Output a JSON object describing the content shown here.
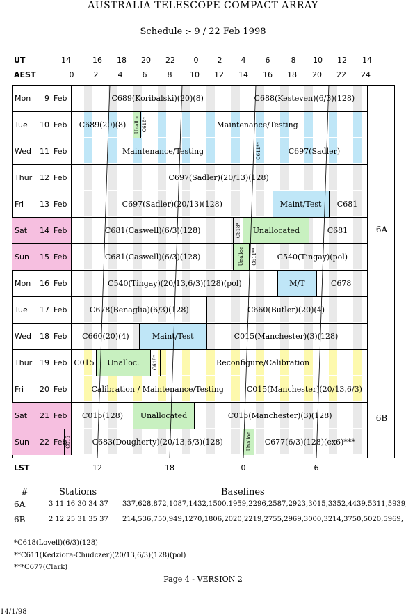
{
  "title": "AUSTRALIA TELESCOPE COMPACT ARRAY",
  "subtitle": "Schedule :- 9 / 22 Feb 1998",
  "axes": {
    "ut_label": "UT",
    "aest_label": "AEST",
    "lst_label": "LST",
    "ut_ticks": [
      "14",
      "16",
      "18",
      "20",
      "22",
      "0",
      "2",
      "4",
      "6",
      "8",
      "10",
      "12",
      "14"
    ],
    "aest_ticks": [
      "0",
      "2",
      "4",
      "6",
      "8",
      "10",
      "12",
      "14",
      "16",
      "18",
      "20",
      "22",
      "24"
    ],
    "lst_ticks": [
      "12",
      "18",
      "0",
      "6"
    ]
  },
  "configs": [
    "6A",
    "6B"
  ],
  "rows": [
    {
      "day": "Mon",
      "date": "9",
      "month": "Feb",
      "weekend": false,
      "blocks": [
        "C689(Koribalski)(20)(8)",
        "C688(Kesteven)(6/3)(128)"
      ]
    },
    {
      "day": "Tue",
      "date": "10",
      "month": "Feb",
      "weekend": false,
      "blocks": [
        "C689(20)(8)",
        "Unalloc",
        "C618*",
        "Maintenance/Testing"
      ]
    },
    {
      "day": "Wed",
      "date": "11",
      "month": "Feb",
      "weekend": false,
      "blocks": [
        "Maintenance/Testing",
        "C611**",
        "C697(Sadler)"
      ]
    },
    {
      "day": "Thur",
      "date": "12",
      "month": "Feb",
      "weekend": false,
      "blocks": [
        "C697(Sadler)(20/13)(128)"
      ]
    },
    {
      "day": "Fri",
      "date": "13",
      "month": "Feb",
      "weekend": false,
      "blocks": [
        "C697(Sadler)(20/13)(128)",
        "Maint/Test",
        "C681"
      ]
    },
    {
      "day": "Sat",
      "date": "14",
      "month": "Feb",
      "weekend": true,
      "blocks": [
        "C681(Caswell)(6/3)(128)",
        "C618*",
        "Unallocated",
        "C681"
      ]
    },
    {
      "day": "Sun",
      "date": "15",
      "month": "Feb",
      "weekend": true,
      "blocks": [
        "C681(Caswell)(6/3)(128)",
        "Unalloc",
        "C611**",
        "C540(Tingay)(pol)"
      ]
    },
    {
      "day": "Mon",
      "date": "16",
      "month": "Feb",
      "weekend": false,
      "blocks": [
        "C540(Tingay)(20/13,6/3)(128)(pol)",
        "M/T",
        "C678"
      ]
    },
    {
      "day": "Tue",
      "date": "17",
      "month": "Feb",
      "weekend": false,
      "blocks": [
        "C678(Benaglia)(6/3)(128)",
        "C660(Butler)(20)(4)"
      ]
    },
    {
      "day": "Wed",
      "date": "18",
      "month": "Feb",
      "weekend": false,
      "blocks": [
        "C660(20)(4)",
        "Maint/Test",
        "C015(Manchester)(3)(128)"
      ]
    },
    {
      "day": "Thur",
      "date": "19",
      "month": "Feb",
      "weekend": false,
      "blocks": [
        "C015",
        "Unalloc.",
        "C618*",
        "Reconfigure/Calibration"
      ]
    },
    {
      "day": "Fri",
      "date": "20",
      "month": "Feb",
      "weekend": false,
      "blocks": [
        "Calibration / Maintenance/Testing",
        "C015(Manchester)(20/13,6/3)"
      ]
    },
    {
      "day": "Sat",
      "date": "21",
      "month": "Feb",
      "weekend": true,
      "blocks": [
        "C015(128)",
        "Unallocated",
        "C015(Manchester)(3)(128)"
      ]
    },
    {
      "day": "Sun",
      "date": "22",
      "month": "Feb",
      "weekend": true,
      "blocks": [
        "C015",
        "C683(Dougherty)(20/13,6/3)(128)",
        "Unalloc",
        "C677(6/3)(128)(ex6)***"
      ]
    }
  ],
  "stations_table": {
    "hash": "#",
    "stations_label": "Stations",
    "baselines_label": "Baselines",
    "rows": [
      {
        "config": "6A",
        "stations": "3 11 16 30 34 37",
        "baselines": "337,628,872,1087,1432,1500,1959,2296,2587,2923,3015,3352,4439,5311,5939,"
      },
      {
        "config": "6B",
        "stations": "2 12 25 31 35 37",
        "baselines": "214,536,750,949,1270,1806,2020,2219,2755,2969,3000,3214,3750,5020,5969,"
      }
    ]
  },
  "footnotes": [
    "*C618(Lovell)(6/3)(128)",
    "**C611(Kedziora-Chudczer)(20/13,6/3)(128)(pol)",
    "***C677(Clark)"
  ],
  "page_label": "Page 4 - VERSION 2",
  "date_stamp": "14/1/98"
}
